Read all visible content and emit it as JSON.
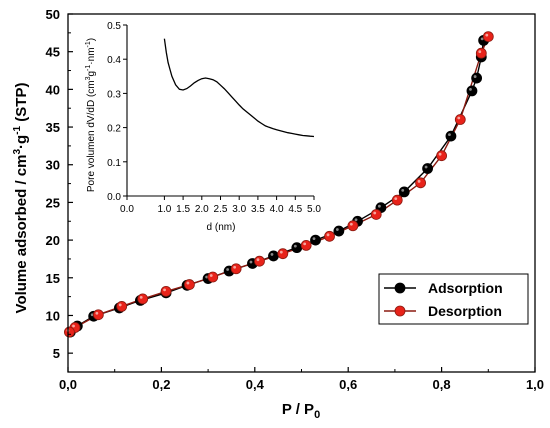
{
  "chart_data": [
    {
      "type": "line",
      "xlabel": "P / P",
      "xlabel_subscript": "0",
      "ylabel": "Volume adsorbed / cm",
      "ylabel_sup1": "3",
      "ylabel_mid": "·g",
      "ylabel_sup2": "-1",
      "ylabel_tail": " (STP)",
      "xlim": [
        0.0,
        1.0
      ],
      "ylim": [
        2.5,
        50
      ],
      "x_ticks": [
        "0,0",
        "0,2",
        "0,4",
        "0,6",
        "0,8",
        "1,0"
      ],
      "x_tick_values": [
        0,
        0.2,
        0.4,
        0.6,
        0.8,
        1.0
      ],
      "y_ticks": [
        "5",
        "10",
        "15",
        "20",
        "25",
        "30",
        "35",
        "40",
        "45",
        "50"
      ],
      "y_tick_values": [
        5,
        10,
        15,
        20,
        25,
        30,
        35,
        40,
        45,
        50
      ],
      "legend_position": "bottom-right",
      "series": [
        {
          "name": "Adsorption",
          "color": "#000000",
          "line_color": "#000000",
          "x": [
            0.005,
            0.02,
            0.055,
            0.11,
            0.155,
            0.21,
            0.255,
            0.3,
            0.345,
            0.395,
            0.44,
            0.49,
            0.53,
            0.58,
            0.62,
            0.67,
            0.72,
            0.77,
            0.82,
            0.865,
            0.875,
            0.885,
            0.89
          ],
          "y": [
            7.8,
            8.6,
            9.9,
            11.0,
            12.0,
            13.0,
            14.0,
            14.9,
            15.9,
            16.9,
            17.9,
            19.0,
            20.0,
            21.2,
            22.5,
            24.3,
            26.4,
            29.5,
            33.8,
            39.8,
            41.5,
            44.3,
            46.5
          ]
        },
        {
          "name": "Desorption",
          "color": "#e8231a",
          "line_color": "#8b1a10",
          "x": [
            0.9,
            0.885,
            0.84,
            0.8,
            0.755,
            0.705,
            0.66,
            0.61,
            0.56,
            0.51,
            0.46,
            0.41,
            0.36,
            0.31,
            0.26,
            0.21,
            0.16,
            0.115,
            0.065,
            0.015,
            0.003
          ],
          "y": [
            47.0,
            44.8,
            36.0,
            31.2,
            27.6,
            25.3,
            23.4,
            21.9,
            20.5,
            19.3,
            18.2,
            17.2,
            16.2,
            15.1,
            14.1,
            13.2,
            12.2,
            11.2,
            10.1,
            8.4,
            7.8
          ]
        }
      ]
    },
    {
      "type": "line",
      "role": "inset",
      "xlabel": "d (nm)",
      "ylabel": "Pore volumen dV/dD (cm",
      "ylabel_sup1": "3",
      "ylabel_mid": "g",
      "ylabel_sup2": "-1",
      "ylabel_mid2": "·nm",
      "ylabel_sup3": "-1",
      "ylabel_tail": ")",
      "xlim": [
        0.0,
        5.0
      ],
      "ylim": [
        0.0,
        0.5
      ],
      "x_ticks": [
        "0.0",
        "1.0",
        "1.5",
        "2.0",
        "2.5",
        "3.0",
        "3.5",
        "4.0",
        "4.5",
        "5.0"
      ],
      "x_tick_values": [
        0.0,
        1.0,
        1.5,
        2.0,
        2.5,
        3.0,
        3.5,
        4.0,
        4.5,
        5.0
      ],
      "y_ticks": [
        "0.0",
        "0.1",
        "0.2",
        "0.3",
        "0.4",
        "0.5"
      ],
      "y_tick_values": [
        0.0,
        0.1,
        0.2,
        0.3,
        0.4,
        0.5
      ],
      "series": [
        {
          "color": "#000000",
          "x": [
            1.0,
            1.05,
            1.1,
            1.15,
            1.2,
            1.3,
            1.4,
            1.5,
            1.6,
            1.7,
            1.8,
            1.9,
            2.0,
            2.1,
            2.2,
            2.3,
            2.4,
            2.5,
            2.6,
            2.7,
            2.8,
            2.9,
            3.0,
            3.1,
            3.2,
            3.3,
            3.4,
            3.5,
            3.6,
            3.7,
            3.8,
            3.9,
            4.0,
            4.1,
            4.2,
            4.3,
            4.4,
            4.5,
            4.6,
            4.7,
            4.8,
            4.9,
            5.0
          ],
          "y": [
            0.46,
            0.42,
            0.39,
            0.37,
            0.35,
            0.325,
            0.312,
            0.31,
            0.314,
            0.322,
            0.331,
            0.338,
            0.343,
            0.345,
            0.343,
            0.34,
            0.334,
            0.324,
            0.314,
            0.302,
            0.29,
            0.278,
            0.266,
            0.255,
            0.246,
            0.237,
            0.228,
            0.219,
            0.212,
            0.205,
            0.201,
            0.197,
            0.194,
            0.191,
            0.188,
            0.185,
            0.183,
            0.181,
            0.179,
            0.177,
            0.176,
            0.175,
            0.174
          ]
        }
      ]
    }
  ]
}
